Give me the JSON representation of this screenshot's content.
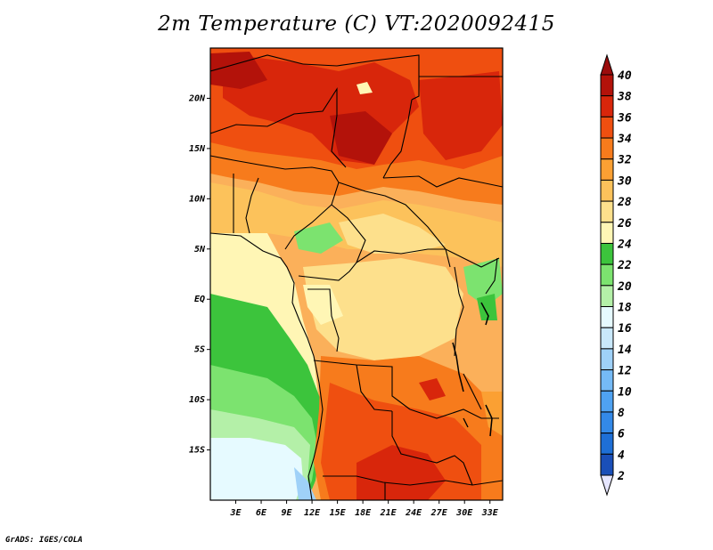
{
  "title": "2m Temperature (C) VT:2020092415",
  "credit": "GrADS: IGES/COLA",
  "map": {
    "lon_range": [
      0,
      34.5
    ],
    "lat_range": [
      -20,
      25
    ],
    "lon_ticks": [
      {
        "value": 3,
        "label": "3E"
      },
      {
        "value": 6,
        "label": "6E"
      },
      {
        "value": 9,
        "label": "9E"
      },
      {
        "value": 12,
        "label": "12E"
      },
      {
        "value": 15,
        "label": "15E"
      },
      {
        "value": 18,
        "label": "18E"
      },
      {
        "value": 21,
        "label": "21E"
      },
      {
        "value": 24,
        "label": "24E"
      },
      {
        "value": 27,
        "label": "27E"
      },
      {
        "value": 30,
        "label": "30E"
      },
      {
        "value": 33,
        "label": "33E"
      }
    ],
    "lat_ticks": [
      {
        "value": 20,
        "label": "20N"
      },
      {
        "value": 15,
        "label": "15N"
      },
      {
        "value": 10,
        "label": "10N"
      },
      {
        "value": 5,
        "label": "5N"
      },
      {
        "value": 0,
        "label": "EQ"
      },
      {
        "value": -5,
        "label": "5S"
      },
      {
        "value": -10,
        "label": "10S"
      },
      {
        "value": -15,
        "label": "15S"
      }
    ]
  },
  "colorbar": {
    "levels": [
      2,
      4,
      6,
      8,
      10,
      12,
      14,
      16,
      18,
      20,
      22,
      24,
      26,
      28,
      30,
      32,
      34,
      36,
      38,
      40
    ],
    "colors": [
      "#16157e",
      "#1a4fb8",
      "#1e6fd6",
      "#3389e8",
      "#4fa2f2",
      "#75baf6",
      "#9fd1f8",
      "#c9e8fb",
      "#e6faff",
      "#b4f0a8",
      "#7ce36f",
      "#3cc43c",
      "#fff6b5",
      "#fde08c",
      "#fcc25b",
      "#fba033",
      "#f77b1c",
      "#ef4f10",
      "#d8260b",
      "#b3120a"
    ],
    "under_color": "#e6e6ff",
    "over_color": "#9b0c0c"
  }
}
